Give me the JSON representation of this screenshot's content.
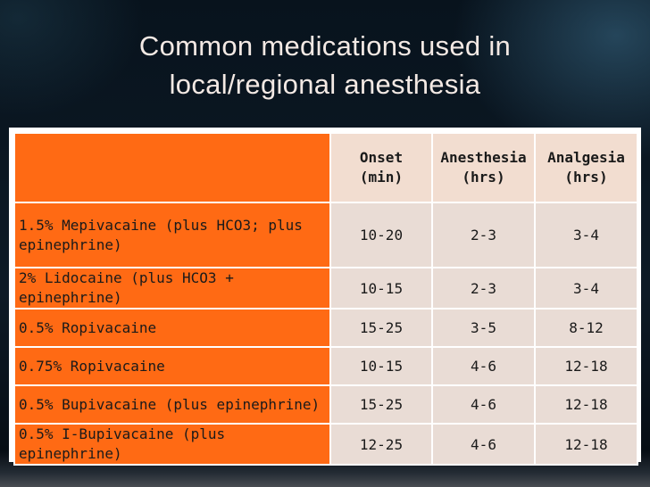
{
  "slide": {
    "title_line1": "Common medications used in",
    "title_line2": "local/regional anesthesia"
  },
  "table": {
    "headers": [
      {
        "line1": "",
        "line2": ""
      },
      {
        "line1": "Onset",
        "line2": "(min)"
      },
      {
        "line1": "Anesthesia",
        "line2": "(hrs)"
      },
      {
        "line1": "Analgesia",
        "line2": "(hrs)"
      }
    ],
    "rows": [
      {
        "drug": "1.5% Mepivacaine (plus HCO3; plus epinephrine)",
        "onset": "10-20",
        "anesthesia": "2-3",
        "analgesia": "3-4"
      },
      {
        "drug": "2% Lidocaine (plus HCO3 + epinephrine)",
        "onset": "10-15",
        "anesthesia": "2-3",
        "analgesia": "3-4"
      },
      {
        "drug": "0.5% Ropivacaine",
        "onset": "15-25",
        "anesthesia": "3-5",
        "analgesia": "8-12"
      },
      {
        "drug": "0.75% Ropivacaine",
        "onset": "10-15",
        "anesthesia": "4-6",
        "analgesia": "12-18"
      },
      {
        "drug": "0.5% Bupivacaine (plus epinephrine)",
        "onset": "15-25",
        "anesthesia": "4-6",
        "analgesia": "12-18"
      },
      {
        "drug": "0.5% I-Bupivacaine (plus epinephrine)",
        "onset": "12-25",
        "anesthesia": "4-6",
        "analgesia": "12-18"
      }
    ]
  },
  "colors": {
    "drug_cell": "#ff6a14",
    "header_cell": "#f2ddd0",
    "value_cell": "#e9dcd5",
    "title_text": "#f3e9e4",
    "background": "#0b1622"
  }
}
